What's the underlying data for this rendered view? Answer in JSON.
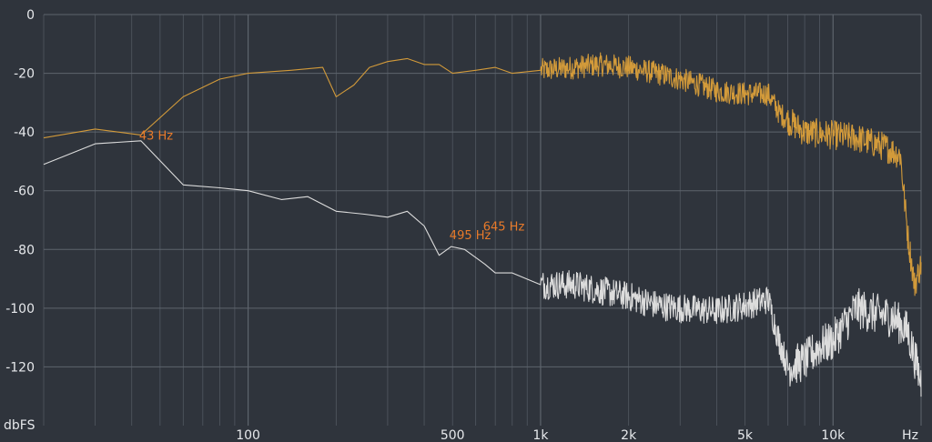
{
  "chart_data": {
    "type": "line",
    "ylabel": "dbFS",
    "xunit": "Hz",
    "xscale": "log",
    "xlim": [
      20,
      20000
    ],
    "ylim": [
      -140,
      0
    ],
    "grid": true,
    "y_ticks": [
      0,
      -20,
      -40,
      -60,
      -80,
      -100,
      -120
    ],
    "y_tick_labels": [
      "0",
      "-20",
      "-40",
      "-60",
      "-80",
      "-100",
      "-120"
    ],
    "x_ticks": [
      100,
      500,
      1000,
      2000,
      5000,
      10000
    ],
    "x_tick_labels": [
      "100",
      "500",
      "1k",
      "2k",
      "5k",
      "10k"
    ],
    "colors": {
      "background": "#2f343c",
      "grid": "#5e646d",
      "series_1": "#d29a3a",
      "series_2": "#dcdcdc",
      "annotation": "#e87a2a"
    },
    "series": [
      {
        "color": "#d29a3a",
        "points": [
          [
            20,
            -42
          ],
          [
            30,
            -39
          ],
          [
            43,
            -41
          ],
          [
            60,
            -28
          ],
          [
            80,
            -22
          ],
          [
            100,
            -20
          ],
          [
            140,
            -19
          ],
          [
            180,
            -18
          ],
          [
            200,
            -28
          ],
          [
            230,
            -24
          ],
          [
            260,
            -18
          ],
          [
            300,
            -16
          ],
          [
            350,
            -15
          ],
          [
            400,
            -17
          ],
          [
            450,
            -17
          ],
          [
            500,
            -20
          ],
          [
            600,
            -19
          ],
          [
            700,
            -18
          ],
          [
            800,
            -20
          ],
          [
            1000,
            -19
          ],
          [
            1300,
            -18
          ],
          [
            1600,
            -17
          ],
          [
            2000,
            -18
          ],
          [
            2500,
            -20
          ],
          [
            3000,
            -22
          ],
          [
            3500,
            -24
          ],
          [
            4000,
            -26
          ],
          [
            5000,
            -27
          ],
          [
            6000,
            -27
          ],
          [
            6500,
            -33
          ],
          [
            7000,
            -36
          ],
          [
            8000,
            -40
          ],
          [
            10000,
            -41
          ],
          [
            12000,
            -42
          ],
          [
            15000,
            -45
          ],
          [
            17000,
            -48
          ],
          [
            18000,
            -75
          ],
          [
            19000,
            -92
          ],
          [
            20000,
            -85
          ]
        ]
      },
      {
        "color": "#dcdcdc",
        "points": [
          [
            20,
            -51
          ],
          [
            30,
            -44
          ],
          [
            43,
            -43
          ],
          [
            60,
            -58
          ],
          [
            80,
            -59
          ],
          [
            100,
            -60
          ],
          [
            130,
            -63
          ],
          [
            160,
            -62
          ],
          [
            200,
            -67
          ],
          [
            250,
            -68
          ],
          [
            300,
            -69
          ],
          [
            350,
            -67
          ],
          [
            400,
            -72
          ],
          [
            450,
            -82
          ],
          [
            495,
            -79
          ],
          [
            550,
            -80
          ],
          [
            645,
            -85
          ],
          [
            700,
            -88
          ],
          [
            800,
            -88
          ],
          [
            1000,
            -92
          ],
          [
            1300,
            -92
          ],
          [
            1600,
            -94
          ],
          [
            2000,
            -96
          ],
          [
            2500,
            -99
          ],
          [
            3000,
            -100
          ],
          [
            4000,
            -101
          ],
          [
            5000,
            -99
          ],
          [
            6000,
            -97
          ],
          [
            6500,
            -110
          ],
          [
            7000,
            -120
          ],
          [
            8000,
            -118
          ],
          [
            9000,
            -113
          ],
          [
            10000,
            -111
          ],
          [
            12000,
            -100
          ],
          [
            14000,
            -102
          ],
          [
            16000,
            -103
          ],
          [
            18000,
            -108
          ],
          [
            20000,
            -125
          ]
        ]
      }
    ],
    "annotations": [
      {
        "x": 43,
        "y": -41,
        "label": "43 Hz"
      },
      {
        "x": 645,
        "y": -72,
        "label": "645 Hz"
      },
      {
        "x": 495,
        "y": -75,
        "label": "495 Hz"
      }
    ]
  }
}
